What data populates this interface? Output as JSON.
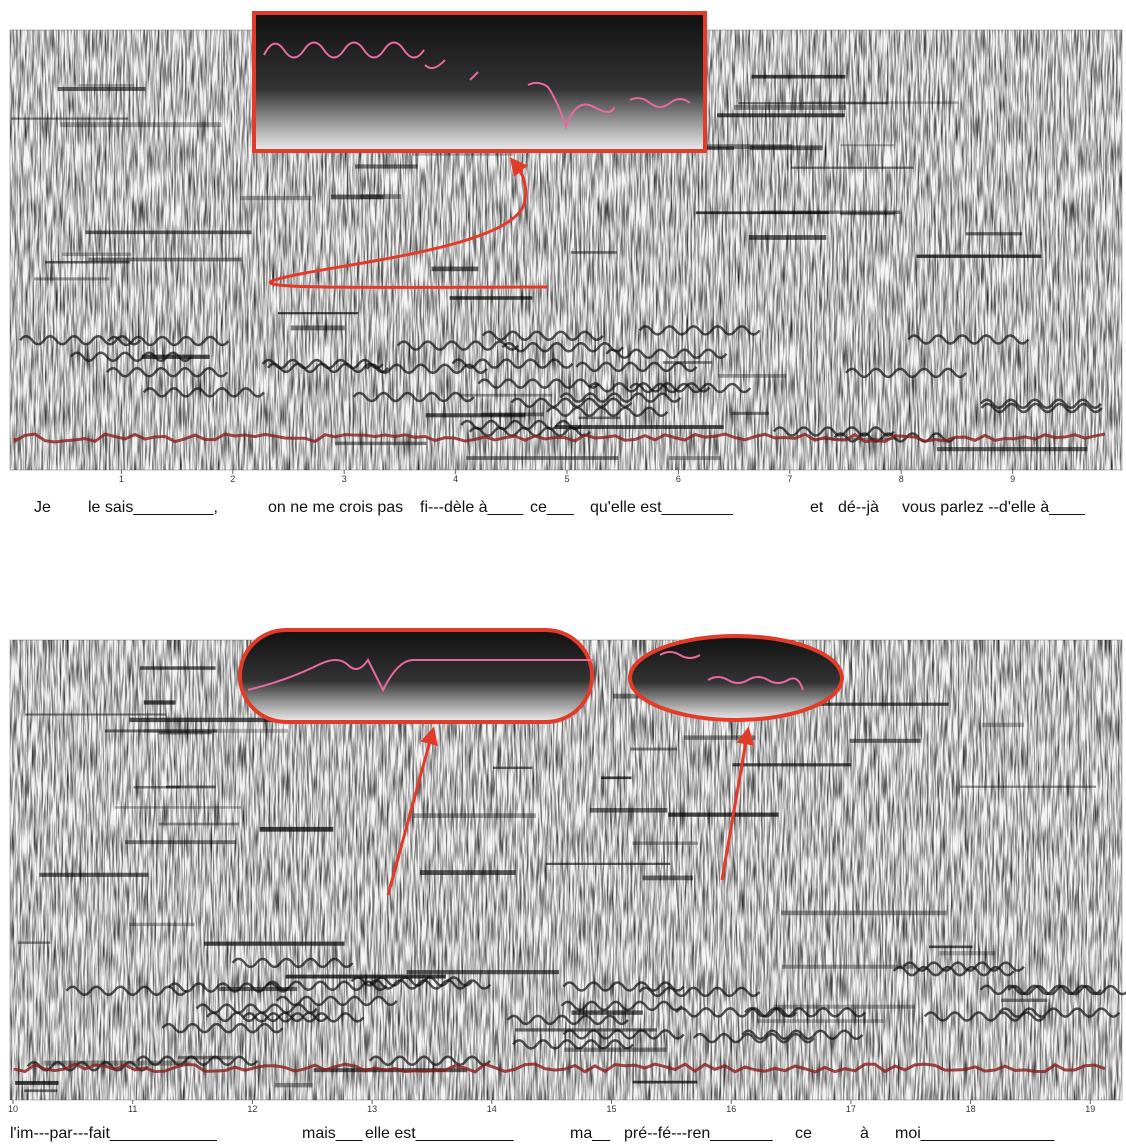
{
  "panels": [
    {
      "ticks": [
        1,
        2,
        3,
        4,
        5,
        6,
        7,
        8,
        9
      ],
      "lyrics": [
        "Je",
        "le sais_________,",
        "on ne me crois pas",
        "fi---dèle à____",
        "ce___",
        "qu'elle est________",
        "et",
        "dé--jà",
        "vous parlez --d'elle à____"
      ]
    },
    {
      "ticks": [
        10,
        11,
        12,
        13,
        14,
        15,
        16,
        17,
        18,
        19
      ],
      "lyrics": [
        "l'im---par---fait____________",
        "mais___",
        "elle est___________",
        "ma__",
        "pré--fé---ren_______",
        "ce",
        "à",
        "moi_______________"
      ]
    }
  ]
}
